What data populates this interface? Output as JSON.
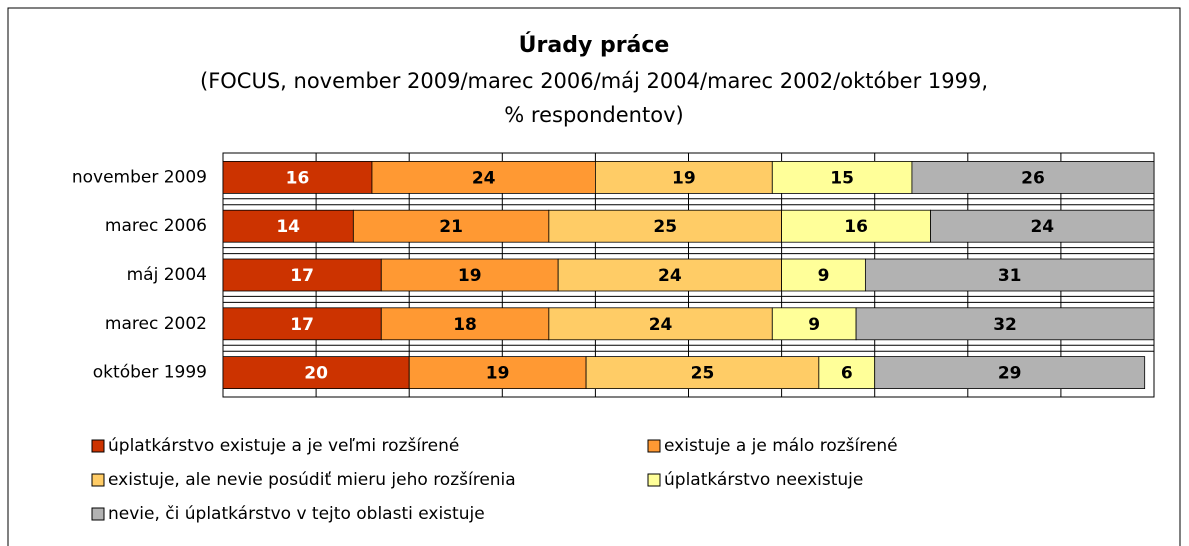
{
  "chart_data": {
    "type": "stacked-bar-horizontal",
    "title": "Úrady práce",
    "subtitle": [
      "(FOCUS, november 2009/marec 2006/máj 2004/marec 2002/október 1999,",
      "% respondentov)"
    ],
    "categories": [
      "november 2009",
      "marec 2006",
      "máj 2004",
      "marec 2002",
      "október 1999"
    ],
    "series": [
      {
        "name": "úplatkárstvo existuje a je veľmi rozšírené",
        "color": "#cc3300",
        "values": [
          16,
          14,
          17,
          17,
          20
        ]
      },
      {
        "name": "existuje a je málo rozšírené",
        "color": "#ff9933",
        "values": [
          24,
          21,
          19,
          18,
          19
        ]
      },
      {
        "name": "existuje, ale nevie posúdiť mieru jeho rozšírenia",
        "color": "#ffcc66",
        "values": [
          19,
          25,
          24,
          24,
          25
        ]
      },
      {
        "name": "úplatkárstvo neexistuje",
        "color": "#ffff99",
        "values": [
          15,
          16,
          9,
          9,
          6
        ]
      },
      {
        "name": "nevie, či úplatkárstvo v tejto oblasti existuje",
        "color": "#b2b2b2",
        "values": [
          26,
          24,
          31,
          32,
          29
        ]
      }
    ],
    "xlim": [
      0,
      100
    ],
    "xticks": [
      0,
      10,
      20,
      30,
      40,
      50,
      60,
      70,
      80,
      90,
      100
    ],
    "grid": true
  }
}
